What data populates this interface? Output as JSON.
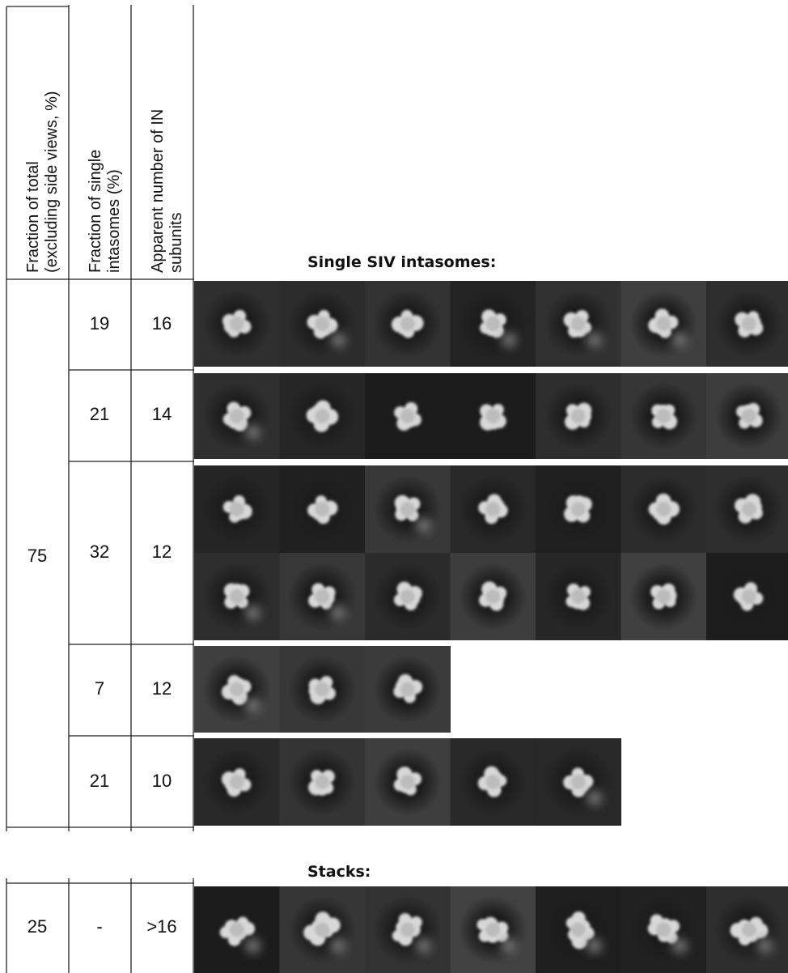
{
  "header": {
    "columns": [
      [
        "Fraction of total",
        "(excluding side views, %)"
      ],
      [
        "Fraction of single",
        "intasomes (%)"
      ],
      [
        "Apparent number of IN",
        "subunits"
      ]
    ]
  },
  "section_titles": {
    "single": "Single SIV intasomes:",
    "stacks": "Stacks:"
  },
  "table": {
    "total": 75,
    "rows": [
      [
        19,
        16
      ],
      [
        21,
        14
      ],
      [
        32,
        12
      ],
      [
        7,
        12
      ],
      [
        21,
        10
      ]
    ]
  },
  "stacks": {
    "rows": [
      [
        25,
        "-",
        ">16"
      ]
    ]
  }
}
